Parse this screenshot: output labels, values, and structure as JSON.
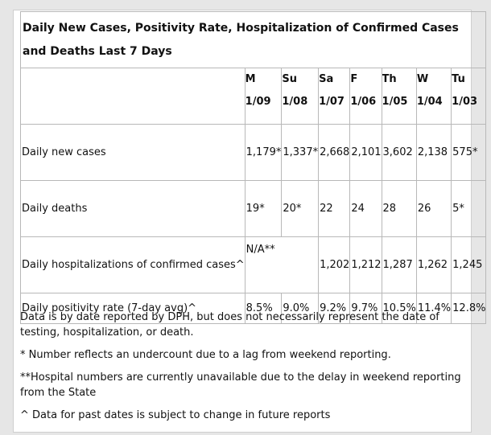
{
  "title": "Daily New Cases, Positivity Rate, Hospitalization of Confirmed Cases and Deaths Last 7 Days",
  "columns": [
    {
      "day": "M",
      "date": "1/09"
    },
    {
      "day": "Su",
      "date": "1/08"
    },
    {
      "day": "Sa",
      "date": "1/07"
    },
    {
      "day": "F",
      "date": "1/06"
    },
    {
      "day": "Th",
      "date": "1/05"
    },
    {
      "day": "W",
      "date": "1/04"
    },
    {
      "day": "Tu",
      "date": "1/03"
    }
  ],
  "rows": [
    {
      "label": "Daily new cases",
      "values": [
        "1,179*",
        "1,337*",
        "2,668",
        "2,101",
        "3,602",
        "2,138",
        "575*"
      ]
    },
    {
      "label": "Daily deaths",
      "values": [
        "19*",
        "20*",
        "22",
        "24",
        "28",
        "26",
        "5*"
      ]
    },
    {
      "label": "Daily hospitalizations of confirmed cases^",
      "values": [
        "N/A**",
        "",
        "1,202",
        "1,212",
        "1,287",
        "1,262",
        "1,245"
      ]
    },
    {
      "label": "Daily positivity rate (7-day avg)^",
      "values": [
        "8.5%",
        "9.0%",
        "9.2%",
        "9.7%",
        "10.5%",
        "11.4%",
        "12.8%"
      ]
    }
  ],
  "notes": [
    "Data is by date reported by DPH, but does not necessarily represent the date of testing, hospitalization, or death.",
    "* Number reflects an undercount due to a lag from weekend reporting.",
    "**Hospital numbers are currently unavailable due to the delay in weekend reporting from the State",
    "^ Data for past dates is subject to change in future reports"
  ]
}
